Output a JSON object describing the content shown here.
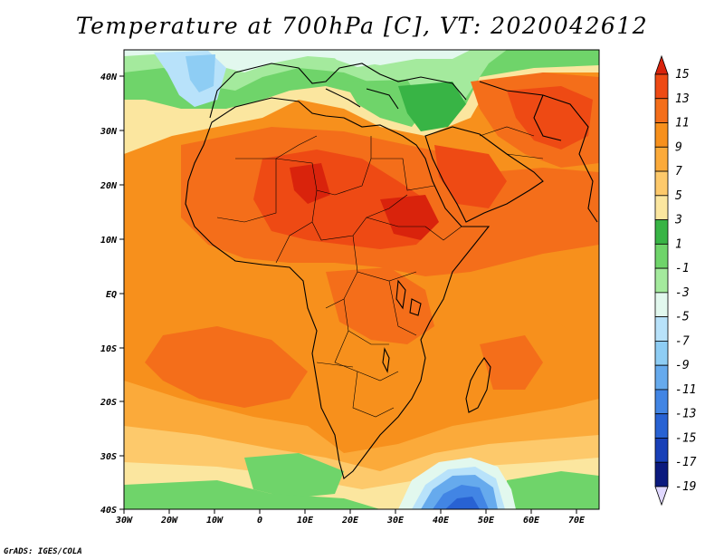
{
  "title": "Temperature at 700hPa [C], VT: 2020042612",
  "credit": "GrADS: IGES/COLA",
  "map": {
    "lon_ticks": [
      "30W",
      "20W",
      "10W",
      "0",
      "10E",
      "20E",
      "30E",
      "40E",
      "50E",
      "60E",
      "70E"
    ],
    "lat_ticks": [
      "40N",
      "30N",
      "20N",
      "10N",
      "EQ",
      "10S",
      "20S",
      "30S",
      "40S"
    ]
  },
  "colorbar": {
    "labels": [
      "15",
      "13",
      "11",
      "9",
      "7",
      "5",
      "3",
      "1",
      "-1",
      "-3",
      "-5",
      "-7",
      "-9",
      "-11",
      "-13",
      "-15",
      "-17",
      "-19"
    ],
    "colors": [
      "#d9230c",
      "#ee4a14",
      "#f46e1a",
      "#f7901c",
      "#fbaa3a",
      "#fdc96b",
      "#fbe69f",
      "#38b445",
      "#6fd46a",
      "#a4ea9d",
      "#e2f8ee",
      "#b8e2fa",
      "#8ecdf4",
      "#66aaed",
      "#4285e4",
      "#2862d3",
      "#1840b8",
      "#0b1a7e",
      "#e0d8ff"
    ]
  }
}
